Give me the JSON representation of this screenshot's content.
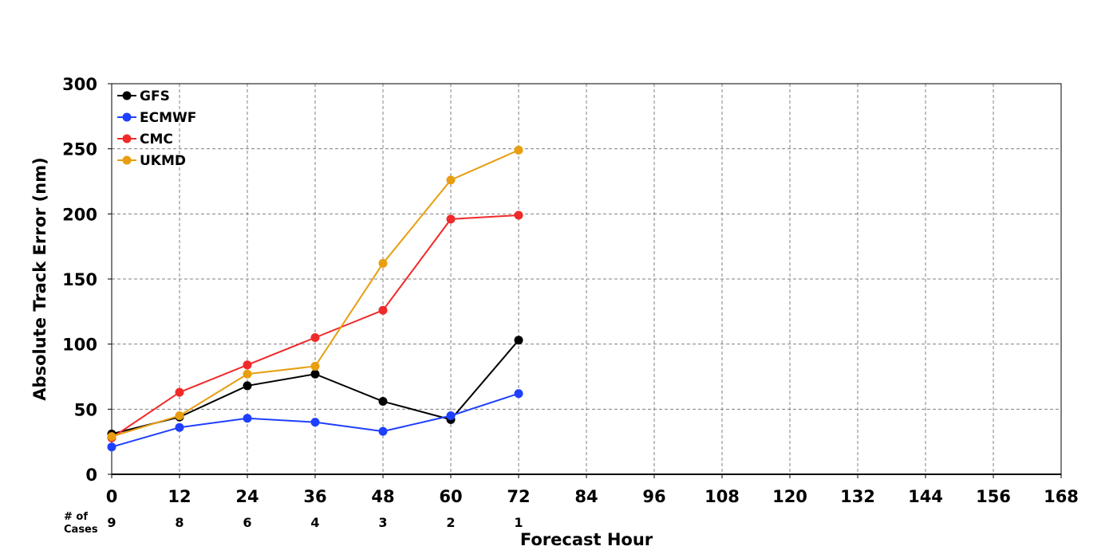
{
  "chart_data": {
    "type": "line",
    "xlabel": "Forecast Hour",
    "ylabel": "Absolute Track Error (nm)",
    "xlim": [
      0,
      168
    ],
    "ylim": [
      0,
      300
    ],
    "x_ticks": [
      0,
      12,
      24,
      36,
      48,
      60,
      72,
      84,
      96,
      108,
      120,
      132,
      144,
      156,
      168
    ],
    "y_ticks": [
      0,
      50,
      100,
      150,
      200,
      250,
      300
    ],
    "grid": true,
    "legend_position": "top-left",
    "series": [
      {
        "name": "GFS",
        "color": "#000000",
        "x": [
          0,
          12,
          24,
          36,
          48,
          60,
          72
        ],
        "y": [
          31,
          44,
          68,
          77,
          56,
          42,
          103
        ]
      },
      {
        "name": "ECMWF",
        "color": "#1f3fff",
        "x": [
          0,
          12,
          24,
          36,
          48,
          60,
          72
        ],
        "y": [
          21,
          36,
          43,
          40,
          33,
          45,
          62
        ]
      },
      {
        "name": "CMC",
        "color": "#f02a2a",
        "x": [
          0,
          12,
          24,
          36,
          48,
          60,
          72
        ],
        "y": [
          28,
          63,
          84,
          105,
          126,
          196,
          199
        ]
      },
      {
        "name": "UKMD",
        "color": "#e89e10",
        "x": [
          0,
          12,
          24,
          36,
          48,
          60,
          72
        ],
        "y": [
          29,
          45,
          77,
          83,
          162,
          226,
          249
        ]
      }
    ],
    "cases": {
      "label_line1": "# of",
      "label_line2": "Cases",
      "x": [
        0,
        12,
        24,
        36,
        48,
        60,
        72
      ],
      "counts": [
        "9",
        "8",
        "6",
        "4",
        "3",
        "2",
        "1"
      ]
    }
  }
}
